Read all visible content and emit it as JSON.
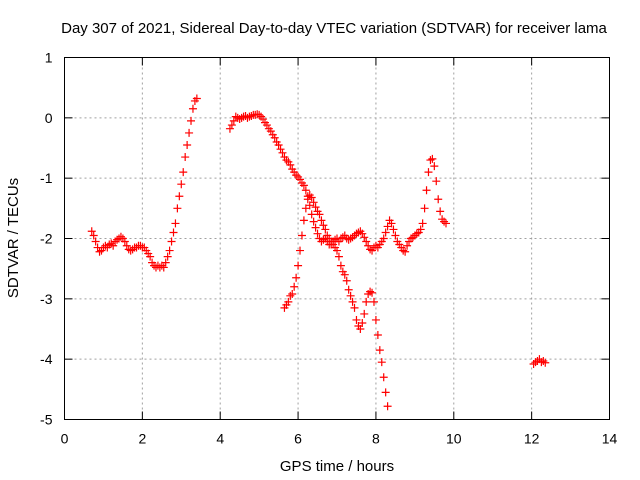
{
  "chart_data": {
    "type": "scatter",
    "title": "Day 307 of 2021, Sidereal Day-to-day VTEC variation (SDTVAR) for receiver lama",
    "xlabel": "GPS time / hours",
    "ylabel": "SDTVAR / TECUs",
    "xlim": [
      0,
      14
    ],
    "ylim": [
      -5,
      1
    ],
    "xticks": [
      0,
      2,
      4,
      6,
      8,
      10,
      12,
      14
    ],
    "yticks": [
      -5,
      -4,
      -3,
      -2,
      -1,
      0,
      1
    ],
    "grid": true,
    "marker": "+",
    "color": "#ff0000",
    "legend": "none",
    "segments": [
      {
        "x": [
          0.7,
          0.75,
          0.8,
          0.85,
          0.9,
          0.95,
          1.0,
          1.05,
          1.1,
          1.15,
          1.2,
          1.25,
          1.3,
          1.35,
          1.4,
          1.45,
          1.5,
          1.55,
          1.6,
          1.65,
          1.7,
          1.75,
          1.8,
          1.85,
          1.9,
          1.95,
          2.0,
          2.05,
          2.1,
          2.15,
          2.2,
          2.25,
          2.3,
          2.35,
          2.4,
          2.45,
          2.5,
          2.55,
          2.6,
          2.65,
          2.7,
          2.75,
          2.8,
          2.85,
          2.9,
          2.95,
          3.0,
          3.05,
          3.1,
          3.15,
          3.2,
          3.25,
          3.3,
          3.35,
          3.4
        ],
        "y": [
          -1.88,
          -1.95,
          -2.05,
          -2.15,
          -2.22,
          -2.2,
          -2.15,
          -2.12,
          -2.15,
          -2.1,
          -2.08,
          -2.12,
          -2.05,
          -2.02,
          -2.0,
          -1.97,
          -2.0,
          -2.05,
          -2.12,
          -2.18,
          -2.2,
          -2.18,
          -2.15,
          -2.15,
          -2.12,
          -2.12,
          -2.15,
          -2.15,
          -2.2,
          -2.25,
          -2.3,
          -2.4,
          -2.45,
          -2.48,
          -2.45,
          -2.48,
          -2.45,
          -2.48,
          -2.4,
          -2.3,
          -2.2,
          -2.05,
          -1.9,
          -1.75,
          -1.5,
          -1.3,
          -1.1,
          -0.9,
          -0.65,
          -0.45,
          -0.25,
          -0.05,
          0.15,
          0.28,
          0.32
        ]
      },
      {
        "x": [
          4.25,
          4.3,
          4.35,
          4.4,
          4.45,
          4.5,
          4.55,
          4.6,
          4.65,
          4.7,
          4.75,
          4.8,
          4.85,
          4.9,
          4.95,
          5.0,
          5.05,
          5.1,
          5.15,
          5.2,
          5.25,
          5.3,
          5.35,
          5.4,
          5.45,
          5.5,
          5.55,
          5.6,
          5.65,
          5.7,
          5.75,
          5.8,
          5.85,
          5.9,
          5.95,
          6.0,
          6.05,
          6.1,
          6.15,
          6.2,
          6.25,
          6.3,
          6.35,
          6.4,
          6.45,
          6.5,
          6.55,
          6.6,
          6.65,
          6.7,
          6.75,
          6.8,
          6.85,
          6.9,
          6.95,
          7.0,
          7.05,
          7.1,
          7.15,
          7.2,
          7.25,
          7.3,
          7.35,
          7.4,
          7.45,
          7.5,
          7.55,
          7.6,
          7.65,
          7.7,
          7.75,
          7.8,
          7.85,
          7.9,
          7.95,
          8.0,
          8.05,
          8.1,
          8.15,
          8.2,
          8.25,
          8.3,
          8.35,
          8.4,
          8.45,
          8.5,
          8.55,
          8.6,
          8.65,
          8.7,
          8.75,
          8.8,
          8.85,
          8.9,
          8.95,
          9.0,
          9.05,
          9.1,
          9.15,
          9.2,
          9.25,
          9.3,
          9.35,
          9.4,
          9.45,
          9.5,
          9.55,
          9.6,
          9.65,
          9.7,
          9.75,
          9.8
        ],
        "y": [
          -0.18,
          -0.12,
          -0.05,
          0.02,
          0.0,
          -0.02,
          0.0,
          0.02,
          0.03,
          0.0,
          0.02,
          0.03,
          0.05,
          0.05,
          0.06,
          0.05,
          0.02,
          -0.02,
          -0.08,
          -0.12,
          -0.18,
          -0.22,
          -0.28,
          -0.33,
          -0.4,
          -0.45,
          -0.52,
          -0.58,
          -0.65,
          -0.7,
          -0.73,
          -0.78,
          -0.85,
          -0.9,
          -0.95,
          -0.98,
          -1.02,
          -1.08,
          -1.12,
          -1.2,
          -1.3,
          -1.45,
          -1.6,
          -1.72,
          -1.82,
          -1.92,
          -2.0,
          -2.05,
          -2.02,
          -2.0,
          -2.05,
          -2.1,
          -2.1,
          -2.05,
          -2.02,
          -2.0,
          -2.05,
          -2.0,
          -1.98,
          -1.95,
          -2.0,
          -2.02,
          -2.0,
          -1.98,
          -1.95,
          -1.92,
          -1.9,
          -1.88,
          -1.92,
          -1.98,
          -2.05,
          -2.12,
          -2.18,
          -2.2,
          -2.15,
          -2.12,
          -2.15,
          -2.1,
          -2.05,
          -2.0,
          -1.9,
          -1.8,
          -1.7,
          -1.75,
          -1.85,
          -1.95,
          -2.05,
          -2.1,
          -2.15,
          -2.2,
          -2.22,
          -2.12,
          -2.05,
          -2.0,
          -1.98,
          -1.95,
          -1.92,
          -1.9,
          -1.85,
          -1.75,
          -1.5,
          -1.2,
          -0.9,
          -0.7,
          -0.68,
          -0.8,
          -1.05,
          -1.35,
          -1.55,
          -1.68,
          -1.72,
          -1.75
        ]
      },
      {
        "x": [
          5.65,
          5.7,
          5.75,
          5.8,
          5.85,
          5.9,
          5.95,
          6.0,
          6.05,
          6.1,
          6.15,
          6.2,
          6.25,
          6.3,
          6.35,
          6.4,
          6.45,
          6.5,
          6.55,
          6.6,
          6.65,
          6.7,
          6.75,
          6.8,
          6.85,
          6.9,
          6.95,
          7.0,
          7.05,
          7.1,
          7.15,
          7.2,
          7.25,
          7.3,
          7.35,
          7.4,
          7.45,
          7.5,
          7.55,
          7.6,
          7.65,
          7.7,
          7.75,
          7.8,
          7.85,
          7.9,
          7.95,
          8.0,
          8.05,
          8.1,
          8.15,
          8.2,
          8.25,
          8.3
        ],
        "y": [
          -3.15,
          -3.1,
          -3.05,
          -2.95,
          -2.92,
          -2.8,
          -2.65,
          -2.45,
          -2.2,
          -1.95,
          -1.7,
          -1.5,
          -1.35,
          -1.28,
          -1.32,
          -1.4,
          -1.48,
          -1.55,
          -1.6,
          -1.7,
          -1.78,
          -1.85,
          -1.95,
          -2.0,
          -2.05,
          -2.1,
          -2.15,
          -2.2,
          -2.3,
          -2.45,
          -2.55,
          -2.6,
          -2.7,
          -2.85,
          -2.95,
          -3.05,
          -3.15,
          -3.35,
          -3.45,
          -3.5,
          -3.4,
          -3.25,
          -3.05,
          -2.92,
          -2.88,
          -2.9,
          -3.05,
          -3.35,
          -3.6,
          -3.85,
          -4.05,
          -4.3,
          -4.55,
          -4.78
        ]
      },
      {
        "x": [
          12.05,
          12.1,
          12.15,
          12.2,
          12.25,
          12.3,
          12.35
        ],
        "y": [
          -4.08,
          -4.05,
          -4.03,
          -4.0,
          -4.05,
          -4.03,
          -4.06
        ]
      }
    ]
  }
}
